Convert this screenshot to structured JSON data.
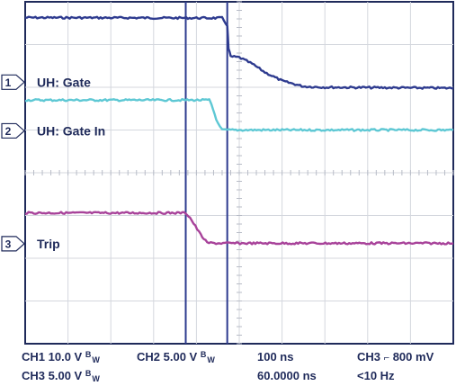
{
  "chart_data": {
    "type": "line",
    "title": "",
    "xlabel": "",
    "ylabel": "",
    "grid": true,
    "grid_divisions": {
      "x": 10,
      "y": 8
    },
    "x_unit": "div",
    "y_unit": "div",
    "xlim": [
      0,
      10
    ],
    "ylim": [
      0,
      8
    ],
    "series": [
      {
        "name": "UH: Gate",
        "channel_marker": "1",
        "color": "#2e3b8f",
        "ground_level": 6.12,
        "points": [
          [
            0,
            7.63
          ],
          [
            4.6,
            7.62
          ],
          [
            4.72,
            7.45
          ],
          [
            4.75,
            6.9
          ],
          [
            4.8,
            6.72
          ],
          [
            5.0,
            6.7
          ],
          [
            5.3,
            6.55
          ],
          [
            5.6,
            6.35
          ],
          [
            6.0,
            6.15
          ],
          [
            6.5,
            6.02
          ],
          [
            7.0,
            6.0
          ],
          [
            10,
            5.98
          ]
        ]
      },
      {
        "name": "UH: Gate In",
        "channel_marker": "2",
        "color": "#5ec8d4",
        "ground_level": 4.98,
        "points": [
          [
            0,
            5.7
          ],
          [
            4.3,
            5.7
          ],
          [
            4.35,
            5.6
          ],
          [
            4.5,
            5.15
          ],
          [
            4.6,
            5.0
          ],
          [
            5.0,
            5.0
          ],
          [
            10,
            5.0
          ]
        ]
      },
      {
        "name": "Trip",
        "channel_marker": "3",
        "color": "#a8439a",
        "ground_level": 2.34,
        "points": [
          [
            0,
            3.06
          ],
          [
            3.75,
            3.06
          ],
          [
            3.85,
            2.95
          ],
          [
            4.1,
            2.55
          ],
          [
            4.25,
            2.36
          ],
          [
            4.5,
            2.35
          ],
          [
            10,
            2.35
          ]
        ]
      }
    ],
    "cursors_x": [
      3.75,
      4.72
    ]
  },
  "status": {
    "ch1": "CH1 10.0 V",
    "ch2": "CH2  5.00 V",
    "ch3": "CH3 5.00 V",
    "bw_label": "B",
    "bw_sub": "W",
    "timebase": "100 ns",
    "position": "60.0000 ns",
    "trigger_channel": "CH3",
    "trigger_level": "800 mV",
    "trigger_rate": "<10 Hz"
  }
}
